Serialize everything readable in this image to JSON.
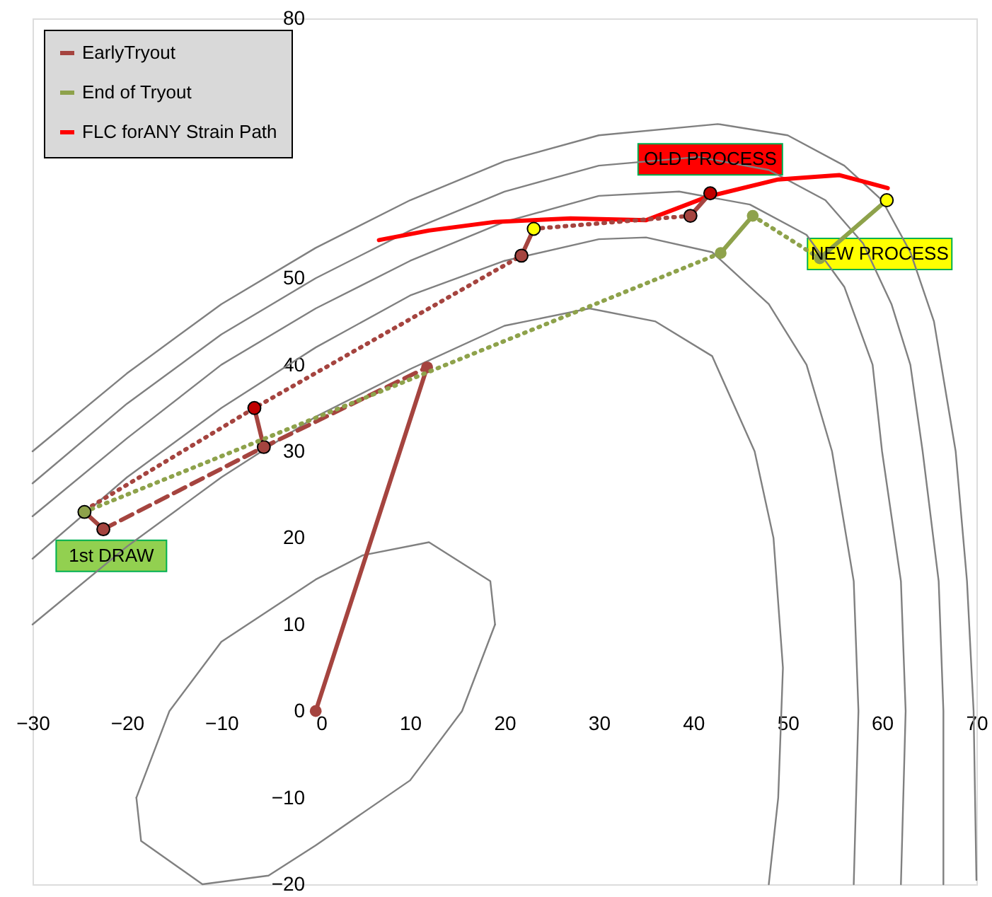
{
  "chart_data": {
    "type": "line",
    "xlim": [
      -30,
      70
    ],
    "ylim": [
      -20,
      80
    ],
    "xticks": [
      -30,
      -20,
      -10,
      0,
      10,
      20,
      30,
      40,
      50,
      60,
      70
    ],
    "yticks": [
      -20,
      -10,
      0,
      10,
      20,
      30,
      40,
      50,
      80
    ],
    "grid": false,
    "legend": "top left",
    "series": [
      {
        "color": "#808080",
        "x": [
          -19,
          -15.5,
          -10,
          0,
          5,
          12,
          18.5,
          19
        ],
        "values": [
          -10,
          0,
          8,
          15.2,
          18,
          19.5,
          15,
          10
        ]
      },
      {
        "color": "#808080",
        "x": [
          -19,
          -18.5,
          -12,
          -5,
          0,
          10,
          15.5,
          19
        ],
        "values": [
          -10,
          -15,
          -20,
          -19,
          -15.5,
          -8,
          0,
          10
        ]
      },
      {
        "color": "#808080",
        "x": [
          -30,
          -20,
          -10,
          0,
          10,
          20,
          29,
          36,
          42,
          46.5,
          48.5,
          49.5,
          49,
          48
        ],
        "values": [
          10,
          19,
          27,
          34,
          39.5,
          44.5,
          46.5,
          45,
          41,
          30,
          20,
          5,
          -10,
          -20
        ]
      },
      {
        "color": "#808080",
        "x": [
          -30,
          -20,
          -10,
          0,
          10,
          20,
          30,
          35,
          42,
          48,
          52,
          54.7,
          57,
          57.5,
          57
        ],
        "values": [
          17.6,
          27,
          35,
          42,
          48,
          52,
          54.5,
          54.7,
          53,
          47,
          40,
          30,
          15,
          0,
          -20
        ]
      },
      {
        "color": "#808080",
        "x": [
          -30,
          -20,
          -10,
          0,
          10,
          20,
          30,
          38.5,
          46,
          52,
          56,
          59,
          60,
          62,
          62.5,
          62
        ],
        "values": [
          22.5,
          31.5,
          40,
          46.5,
          52,
          56.5,
          59.5,
          60,
          58.5,
          55,
          49,
          40,
          30,
          15,
          0,
          -20
        ]
      },
      {
        "color": "#808080",
        "x": [
          -30,
          -20,
          -10,
          0,
          10,
          20,
          30,
          40.5,
          48,
          54,
          58,
          61,
          63,
          64.3,
          66,
          66.5,
          66.5
        ],
        "values": [
          26.3,
          35.5,
          43.5,
          50,
          55.5,
          60,
          63,
          64,
          62.5,
          59,
          54,
          47,
          40,
          30,
          15,
          0,
          -20
        ]
      },
      {
        "color": "#808080",
        "x": [
          -30,
          -20,
          -10,
          0,
          10,
          20,
          30,
          42.6,
          50,
          56,
          60,
          63,
          65.5,
          67.8,
          69,
          69.7,
          70
        ],
        "values": [
          30,
          39,
          47,
          53.5,
          59,
          63.5,
          66.5,
          67.8,
          66.5,
          63,
          59,
          53,
          45,
          30,
          15,
          0,
          -19.5
        ]
      },
      {
        "name": "EarlyTryout",
        "color": "#a5443f",
        "marker": "circle",
        "x": [
          0,
          11.8
        ],
        "values": [
          0,
          39.7
        ]
      },
      {
        "name": "End of Tryout",
        "color": "#8ea24b",
        "marker": "circle",
        "x": [
          42.9,
          46.3
        ],
        "values": [
          52.9,
          57.2
        ]
      },
      {
        "name": "FLC forANY Strain Path",
        "color": "#ff0000",
        "x": [
          6.7,
          12,
          19,
          27,
          35,
          41.5,
          49,
          55.5,
          60.6
        ],
        "values": [
          54.4,
          55.5,
          56.5,
          56.9,
          56.7,
          59.4,
          61.4,
          61.9,
          60.4
        ]
      },
      {
        "color": "#a5443f",
        "line_style": "dashed",
        "x": [
          -22.5,
          -5.5,
          11.8
        ],
        "values": [
          21,
          30.5,
          39.7
        ]
      },
      {
        "color": "#a5443f",
        "line_style": "dotted",
        "x": [
          -23.7,
          -6.5,
          21.8
        ],
        "values": [
          23.7,
          35,
          52.6
        ]
      },
      {
        "color": "#a5443f",
        "line_style": "dotted",
        "x": [
          23.1,
          39.7
        ],
        "values": [
          55.7,
          57.2
        ]
      },
      {
        "color": "#a5443f",
        "line_style": "solid",
        "x": [
          -24.5,
          -22.5
        ],
        "values": [
          23,
          21
        ]
      },
      {
        "color": "#a5443f",
        "line_style": "solid",
        "x": [
          -6.5,
          -5.5
        ],
        "values": [
          35,
          30.5
        ]
      },
      {
        "color": "#a5443f",
        "line_style": "solid",
        "x": [
          23.1,
          21.8
        ],
        "values": [
          55.7,
          52.6
        ]
      },
      {
        "color": "#a5443f",
        "line_style": "solid",
        "x": [
          41.8,
          39.7
        ],
        "values": [
          59.8,
          57.2
        ]
      },
      {
        "type": "scatter",
        "color": "#a5443f",
        "marker": "circle",
        "x": [
          -22.5,
          -5.5,
          21.8,
          39.7
        ],
        "values": [
          21,
          30.5,
          52.6,
          57.2
        ]
      },
      {
        "color": "#8ea24b",
        "line_style": "dotted",
        "x": [
          -24.5,
          42.9
        ],
        "values": [
          23,
          52.9
        ]
      },
      {
        "color": "#8ea24b",
        "line_style": "dotted",
        "x": [
          46.3,
          53.4
        ],
        "values": [
          57.2,
          52.3
        ]
      },
      {
        "color": "#8ea24b",
        "marker": "circle",
        "x": [
          53.4,
          60.5
        ],
        "values": [
          52.3,
          59
        ]
      },
      {
        "type": "scatter",
        "color": "#8ea24b",
        "marker": "circle",
        "x": [
          -24.5
        ],
        "values": [
          23
        ]
      },
      {
        "type": "scatter",
        "color": "#c00000",
        "marker": "circle",
        "x": [
          -6.5,
          41.8
        ],
        "values": [
          35,
          59.8
        ]
      },
      {
        "type": "scatter",
        "color": "#ffff00",
        "marker": "circle",
        "x": [
          23.1,
          60.5
        ],
        "values": [
          55.7,
          59
        ]
      }
    ],
    "annotations": [
      {
        "text": "OLD PROCESS",
        "x": 41.8,
        "y": 59.8
      },
      {
        "text": "NEW PROCESS",
        "x": 60.5,
        "y": 59
      },
      {
        "text": "1st DRAW",
        "x": -24.5,
        "y": 23
      }
    ]
  }
}
